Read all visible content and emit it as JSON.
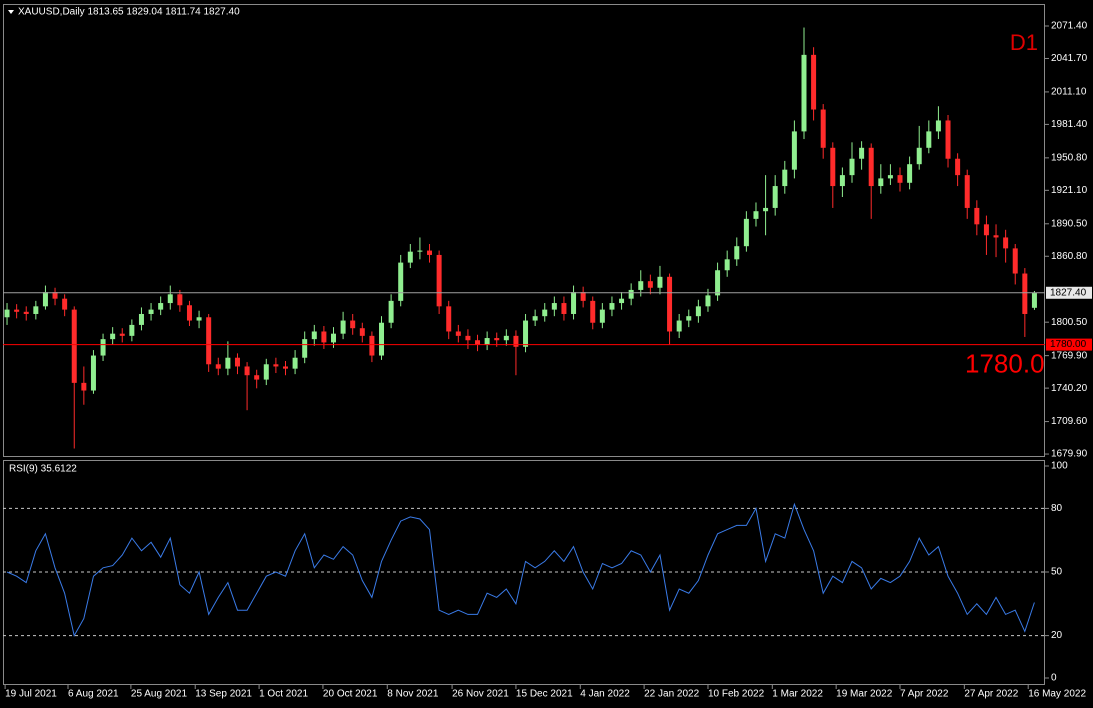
{
  "chart_data": [
    {
      "type": "candlestick",
      "title": "XAUUSD,Daily  1813.65 1829.04 1811.74 1827.40",
      "timeframe": "D1",
      "up_color": "#90ee90",
      "down_color": "#ff2b2b",
      "open": [
        1805,
        1812,
        1810,
        1808,
        1815,
        1828,
        1822,
        1812,
        1745,
        1738,
        1770,
        1785,
        1790,
        1788,
        1798,
        1808,
        1812,
        1818,
        1826,
        1816,
        1802,
        1805,
        1762,
        1758,
        1768,
        1760,
        1752,
        1748,
        1762,
        1760,
        1758,
        1768,
        1785,
        1792,
        1782,
        1790,
        1802,
        1795,
        1788,
        1770,
        1800,
        1820,
        1855,
        1865,
        1866,
        1862,
        1815,
        1792,
        1788,
        1784,
        1780,
        1786,
        1784,
        1788,
        1778,
        1802,
        1806,
        1812,
        1818,
        1808,
        1828,
        1820,
        1800,
        1812,
        1818,
        1822,
        1830,
        1838,
        1832,
        1842,
        1792,
        1802,
        1806,
        1815,
        1825,
        1848,
        1858,
        1870,
        1895,
        1902,
        1905,
        1925,
        1940,
        1975,
        2045,
        1995,
        1960,
        1925,
        1935,
        1950,
        1960,
        1925,
        1932,
        1935,
        1928,
        1945,
        1960,
        1975,
        1985,
        1950,
        1935,
        1905,
        1890,
        1880,
        1878,
        1868,
        1845,
        1813.65
      ],
      "high": [
        1818,
        1817,
        1815,
        1820,
        1834,
        1832,
        1826,
        1815,
        1760,
        1775,
        1790,
        1796,
        1795,
        1803,
        1814,
        1818,
        1824,
        1834,
        1830,
        1820,
        1811,
        1808,
        1768,
        1783,
        1772,
        1764,
        1757,
        1767,
        1768,
        1765,
        1775,
        1792,
        1798,
        1797,
        1796,
        1810,
        1808,
        1800,
        1792,
        1806,
        1826,
        1862,
        1872,
        1878,
        1872,
        1866,
        1820,
        1798,
        1794,
        1789,
        1792,
        1791,
        1794,
        1793,
        1808,
        1812,
        1818,
        1824,
        1824,
        1834,
        1833,
        1824,
        1818,
        1824,
        1828,
        1836,
        1848,
        1844,
        1852,
        1845,
        1808,
        1812,
        1821,
        1831,
        1855,
        1866,
        1878,
        1902,
        1910,
        1935,
        1935,
        1948,
        1985,
        2070,
        2052,
        2000,
        1965,
        1942,
        1965,
        1966,
        1964,
        1945,
        1945,
        1942,
        1952,
        1980,
        1985,
        1998,
        1990,
        1955,
        1940,
        1912,
        1898,
        1890,
        1885,
        1872,
        1850,
        1829.04
      ],
      "low": [
        1798,
        1804,
        1802,
        1803,
        1812,
        1816,
        1806,
        1685,
        1725,
        1735,
        1765,
        1780,
        1782,
        1783,
        1793,
        1802,
        1807,
        1812,
        1810,
        1797,
        1795,
        1755,
        1752,
        1752,
        1753,
        1720,
        1740,
        1743,
        1754,
        1752,
        1753,
        1763,
        1779,
        1776,
        1777,
        1785,
        1789,
        1782,
        1764,
        1766,
        1795,
        1815,
        1850,
        1858,
        1855,
        1808,
        1785,
        1782,
        1776,
        1774,
        1775,
        1778,
        1779,
        1752,
        1773,
        1797,
        1801,
        1806,
        1802,
        1803,
        1814,
        1794,
        1795,
        1806,
        1812,
        1816,
        1824,
        1826,
        1826,
        1780,
        1786,
        1796,
        1800,
        1810,
        1820,
        1842,
        1852,
        1865,
        1888,
        1880,
        1898,
        1918,
        1932,
        1968,
        1985,
        1950,
        1905,
        1915,
        1928,
        1940,
        1895,
        1918,
        1926,
        1920,
        1922,
        1940,
        1955,
        1968,
        1942,
        1925,
        1895,
        1880,
        1862,
        1860,
        1855,
        1835,
        1787,
        1811.74
      ],
      "close": [
        1812,
        1810,
        1808,
        1815,
        1828,
        1822,
        1812,
        1745,
        1738,
        1770,
        1785,
        1790,
        1788,
        1798,
        1808,
        1812,
        1818,
        1826,
        1816,
        1802,
        1805,
        1762,
        1758,
        1768,
        1760,
        1752,
        1748,
        1762,
        1760,
        1758,
        1768,
        1785,
        1792,
        1782,
        1790,
        1802,
        1795,
        1788,
        1770,
        1800,
        1820,
        1855,
        1865,
        1866,
        1862,
        1815,
        1792,
        1788,
        1784,
        1780,
        1786,
        1784,
        1788,
        1778,
        1802,
        1806,
        1812,
        1818,
        1808,
        1828,
        1820,
        1800,
        1812,
        1818,
        1822,
        1830,
        1838,
        1832,
        1842,
        1792,
        1802,
        1806,
        1815,
        1825,
        1848,
        1858,
        1870,
        1895,
        1902,
        1905,
        1925,
        1940,
        1975,
        2045,
        1995,
        1960,
        1925,
        1935,
        1950,
        1960,
        1925,
        1932,
        1935,
        1928,
        1945,
        1960,
        1975,
        1985,
        1950,
        1935,
        1905,
        1890,
        1880,
        1878,
        1868,
        1845,
        1808,
        1827.4
      ],
      "ylim": [
        1677.2,
        2090.6
      ],
      "yticks": [
        {
          "value": 2071.4,
          "label": "2071.40"
        },
        {
          "value": 2041.7,
          "label": "2041.70"
        },
        {
          "value": 2011.1,
          "label": "2011.10"
        },
        {
          "value": 1981.4,
          "label": "1981.40"
        },
        {
          "value": 1950.8,
          "label": "1950.80"
        },
        {
          "value": 1921.1,
          "label": "1921.10"
        },
        {
          "value": 1890.5,
          "label": "1890.50"
        },
        {
          "value": 1860.8,
          "label": "1860.80"
        },
        {
          "value": 1800.5,
          "label": "1800.50"
        },
        {
          "value": 1769.9,
          "label": "1769.90"
        },
        {
          "value": 1740.2,
          "label": "1740.20"
        },
        {
          "value": 1709.6,
          "label": "1709.60"
        },
        {
          "value": 1679.9,
          "label": "1679.90"
        }
      ],
      "levels": [
        {
          "value": 1827.4,
          "label": "1827.40",
          "color": "#a0a0a0"
        },
        {
          "value": 1780,
          "label": "1780.00",
          "color": "#ff0000"
        }
      ],
      "level_annotation": "1780.0",
      "xlim": [
        -0.42,
        108.1
      ],
      "xticks": [
        {
          "value": -0.2,
          "label": "19 Jul 2021"
        },
        {
          "value": 6.35,
          "label": "6 Aug 2021"
        },
        {
          "value": 12.9,
          "label": "25 Aug 2021"
        },
        {
          "value": 19.6,
          "label": "13 Sep 2021"
        },
        {
          "value": 26.25,
          "label": "1 Oct 2021"
        },
        {
          "value": 32.9,
          "label": "20 Oct 2021"
        },
        {
          "value": 39.6,
          "label": "8 Nov 2021"
        },
        {
          "value": 46.35,
          "label": "26 Nov 2021"
        },
        {
          "value": 53,
          "label": "15 Dec 2021"
        },
        {
          "value": 59.7,
          "label": "4 Jan 2022"
        },
        {
          "value": 66.35,
          "label": "22 Jan 2022"
        },
        {
          "value": 73,
          "label": "10 Feb 2022"
        },
        {
          "value": 79.7,
          "label": "1 Mar 2022"
        },
        {
          "value": 86.35,
          "label": "19 Mar 2022"
        },
        {
          "value": 93,
          "label": "7 Apr 2022"
        },
        {
          "value": 99.7,
          "label": "27 Apr 2022"
        },
        {
          "value": 106.35,
          "label": "16 May 2022"
        }
      ]
    },
    {
      "type": "line",
      "title": "RSI(9) 35.6122",
      "color": "#3a7be8",
      "values": [
        50,
        48,
        45,
        60,
        68,
        52,
        40,
        20,
        28,
        48,
        52,
        53,
        58,
        66,
        60,
        64,
        57,
        66,
        44,
        40,
        50,
        30,
        38,
        45,
        32,
        32,
        40,
        48,
        50,
        48,
        60,
        68,
        52,
        58,
        56,
        62,
        58,
        46,
        38,
        55,
        65,
        74,
        76,
        75,
        70,
        32,
        30,
        32,
        30,
        30,
        40,
        38,
        42,
        35,
        55,
        52,
        55,
        60,
        55,
        62,
        50,
        42,
        54,
        52,
        54,
        60,
        58,
        50,
        58,
        32,
        42,
        40,
        46,
        58,
        68,
        70,
        72,
        72,
        80,
        55,
        68,
        66,
        82,
        70,
        60,
        40,
        48,
        45,
        55,
        52,
        42,
        47,
        45,
        48,
        55,
        66,
        58,
        62,
        48,
        40,
        30,
        35,
        30,
        38,
        30,
        32,
        22,
        35.6122
      ],
      "ylim": [
        0,
        100
      ],
      "yticks": [
        100,
        80,
        50,
        20,
        0
      ],
      "dashed_levels": [
        80,
        50,
        20
      ]
    }
  ]
}
